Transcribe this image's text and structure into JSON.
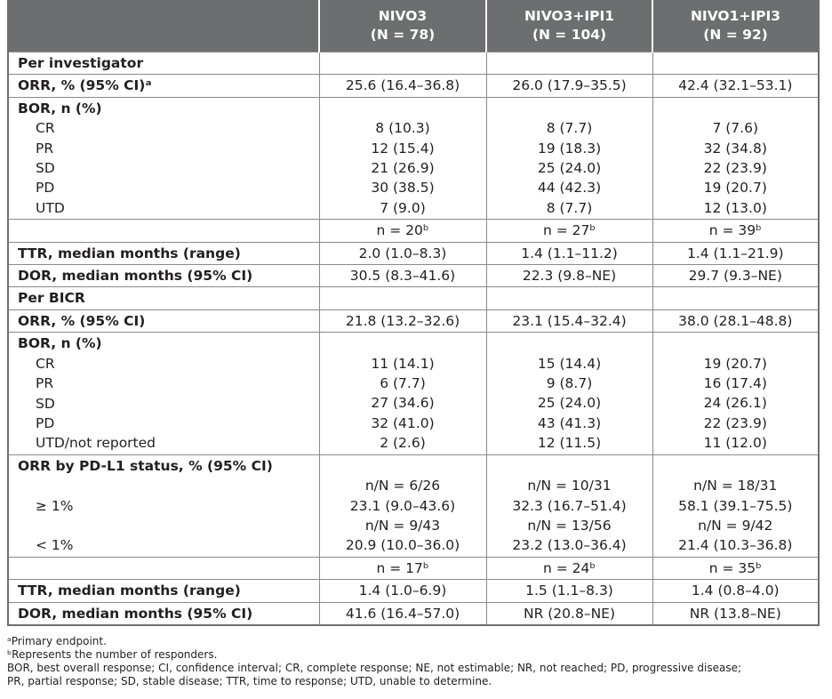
{
  "table": {
    "header": [
      {
        "name": "NIVO3",
        "n": "(N = 78)"
      },
      {
        "name": "NIVO3+IPI1",
        "n": "(N = 104)"
      },
      {
        "name": "NIVO1+IPI3",
        "n": "(N = 92)"
      }
    ],
    "rows": [
      {
        "lines": [
          {
            "label": "Per investigator"
          }
        ]
      },
      {
        "lines": [
          {
            "label": "ORR, % (95% CI)ᵃ",
            "cells": [
              "25.6 (16.4–36.8)",
              "26.0 (17.9–35.5)",
              "42.4 (32.1–53.1)"
            ]
          }
        ]
      },
      {
        "lines": [
          {
            "label": "BOR, n (%)"
          },
          {
            "label": "CR",
            "cells": [
              "8 (10.3)",
              "8 (7.7)",
              "7 (7.6)"
            ]
          },
          {
            "label": "PR",
            "cells": [
              "12 (15.4)",
              "19 (18.3)",
              "32 (34.8)"
            ]
          },
          {
            "label": "SD",
            "cells": [
              "21 (26.9)",
              "25 (24.0)",
              "22 (23.9)"
            ]
          },
          {
            "label": "PD",
            "cells": [
              "30 (38.5)",
              "44 (42.3)",
              "19 (20.7)"
            ]
          },
          {
            "label": "UTD",
            "cells": [
              "7 (9.0)",
              "8 (7.7)",
              "12 (13.0)"
            ]
          }
        ]
      },
      {
        "lines": [
          {
            "cells": [
              "n = 20ᵇ",
              "n = 27ᵇ",
              "n = 39ᵇ"
            ]
          }
        ]
      },
      {
        "lines": [
          {
            "label": "TTR, median months (range)",
            "cells": [
              "2.0 (1.0–8.3)",
              "1.4 (1.1–11.2)",
              "1.4 (1.1–21.9)"
            ]
          }
        ]
      },
      {
        "lines": [
          {
            "label": "DOR, median months (95% CI)",
            "cells": [
              "30.5 (8.3–41.6)",
              "22.3 (9.8–NE)",
              "29.7 (9.3–NE)"
            ]
          }
        ]
      },
      {
        "lines": [
          {
            "label": "Per BICR"
          }
        ]
      },
      {
        "lines": [
          {
            "label": "ORR, % (95% CI)",
            "cells": [
              "21.8 (13.2–32.6)",
              "23.1 (15.4–32.4)",
              "38.0 (28.1–48.8)"
            ]
          }
        ]
      },
      {
        "lines": [
          {
            "label": "BOR, n (%)"
          },
          {
            "label": "CR",
            "cells": [
              "11 (14.1)",
              "15 (14.4)",
              "19 (20.7)"
            ]
          },
          {
            "label": "PR",
            "cells": [
              "6 (7.7)",
              "9 (8.7)",
              "16 (17.4)"
            ]
          },
          {
            "label": "SD",
            "cells": [
              "27 (34.6)",
              "25 (24.0)",
              "24 (26.1)"
            ]
          },
          {
            "label": "PD",
            "cells": [
              "32 (41.0)",
              "43 (41.3)",
              "22 (23.9)"
            ]
          },
          {
            "label": "UTD/not reported",
            "cells": [
              "2 (2.6)",
              "12 (11.5)",
              "11 (12.0)"
            ]
          }
        ]
      },
      {
        "lines": [
          {
            "label": "ORR by PD-L1 status, % (95% CI)"
          },
          {
            "cells": [
              "n/N = 6/26",
              "n/N = 10/31",
              "n/N = 18/31"
            ]
          },
          {
            "label": "≥ 1%",
            "cells": [
              "23.1 (9.0–43.6)",
              "32.3 (16.7–51.4)",
              "58.1 (39.1–75.5)"
            ]
          },
          {
            "cells": [
              "n/N = 9/43",
              "n/N = 13/56",
              "n/N = 9/42"
            ]
          },
          {
            "label": "< 1%",
            "cells": [
              "20.9 (10.0–36.0)",
              "23.2 (13.0–36.4)",
              "21.4 (10.3–36.8)"
            ]
          }
        ]
      },
      {
        "lines": [
          {
            "cells": [
              "n = 17ᵇ",
              "n = 24ᵇ",
              "n = 35ᵇ"
            ]
          }
        ]
      },
      {
        "lines": [
          {
            "label": "TTR, median months (range)",
            "cells": [
              "1.4 (1.0–6.9)",
              "1.5 (1.1–8.3)",
              "1.4 (0.8–4.0)"
            ]
          }
        ]
      },
      {
        "lines": [
          {
            "label": "DOR, median months (95% CI)",
            "cells": [
              "41.6 (16.4–57.0)",
              "NR (20.8–NE)",
              "NR (13.8–NE)"
            ]
          }
        ]
      }
    ]
  },
  "footnotes": [
    "ᵃPrimary endpoint.",
    "ᵇRepresents the number of responders.",
    "BOR, best overall response; CI, confidence interval; CR, complete response; NE, not estimable; NR, not reached; PD, progressive disease;",
    "PR, partial response; SD, stable disease; TTR, time to response; UTD, unable to determine."
  ]
}
